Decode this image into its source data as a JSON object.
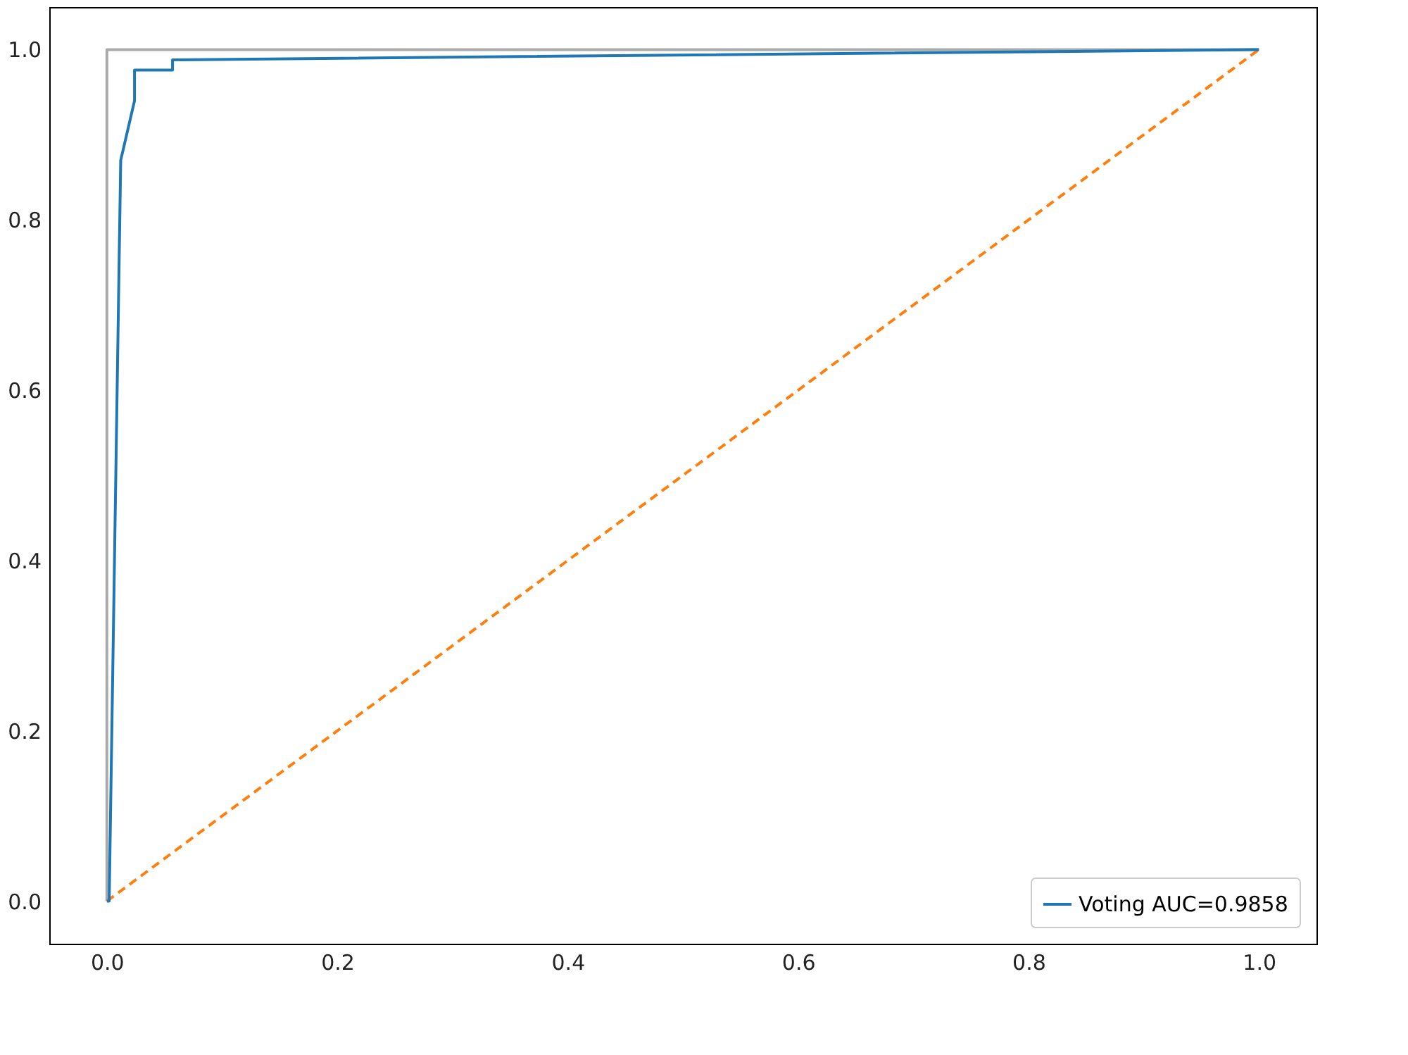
{
  "chart_data": {
    "type": "line",
    "xlim": [
      -0.05,
      1.05
    ],
    "ylim": [
      -0.05,
      1.05
    ],
    "xticks": [
      {
        "value": 0,
        "label": "0.0"
      },
      {
        "value": 0.2,
        "label": "0.2"
      },
      {
        "value": 0.4,
        "label": "0.4"
      },
      {
        "value": 0.6,
        "label": "0.6"
      },
      {
        "value": 0.8,
        "label": "0.8"
      },
      {
        "value": 1,
        "label": "1.0"
      }
    ],
    "yticks": [
      {
        "value": 0,
        "label": "0.0"
      },
      {
        "value": 0.2,
        "label": "0.2"
      },
      {
        "value": 0.4,
        "label": "0.4"
      },
      {
        "value": 0.6,
        "label": "0.6"
      },
      {
        "value": 0.8,
        "label": "0.8"
      },
      {
        "value": 1,
        "label": "1.0"
      }
    ],
    "grid": false,
    "legend": "bottom right",
    "series": [
      {
        "name": "Voting AUC=0.9858",
        "color": "#1f77b4",
        "x": [
          0,
          0.002,
          0.012,
          0.024,
          0.024,
          0.057,
          0.057,
          1
        ],
        "values": [
          0,
          0,
          0.87,
          0.94,
          0.976,
          0.976,
          0.988,
          1
        ]
      },
      {
        "color": "#ff7f0e",
        "line_style": "dashed",
        "x": [
          0,
          1
        ],
        "values": [
          0,
          1
        ]
      },
      {
        "color": "#aaaaaa",
        "x": [
          0,
          0,
          1
        ],
        "values": [
          0,
          1,
          1
        ]
      }
    ]
  }
}
